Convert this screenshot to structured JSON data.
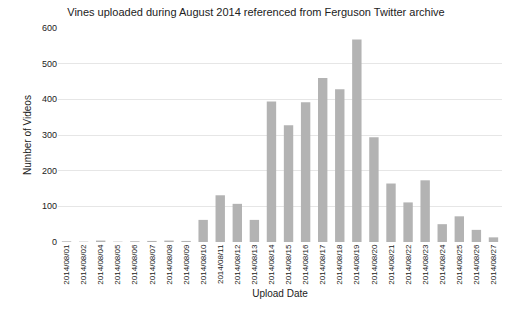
{
  "chart_data": {
    "type": "bar",
    "title": "Vines uploaded during August 2014 referenced from Ferguson Twitter archive",
    "x_label": "Upload Date",
    "y_label": "Number of Videos",
    "categories": [
      "2014/08/01",
      "2014/08/02",
      "2014/08/04",
      "2014/08/05",
      "2014/08/06",
      "2014/08/07",
      "2014/08/08",
      "2014/08/09",
      "2014/08/10",
      "2014/08/11",
      "2014/08/12",
      "2014/08/13",
      "2014/08/14",
      "2014/08/15",
      "2014/08/16",
      "2014/08/17",
      "2014/08/18",
      "2014/08/19",
      "2014/08/20",
      "2014/08/21",
      "2014/08/22",
      "2014/08/23",
      "2014/08/24",
      "2014/08/25",
      "2014/08/26",
      "2014/08/27"
    ],
    "values": [
      2,
      1,
      4,
      1,
      2,
      3,
      4,
      3,
      62,
      131,
      107,
      62,
      394,
      327,
      392,
      460,
      428,
      568,
      294,
      164,
      111,
      173,
      50,
      72,
      34,
      13
    ],
    "color": "#b3b3b3",
    "ylim": [
      0,
      600
    ],
    "yticks": [
      0,
      100,
      200,
      300,
      400,
      500,
      600
    ],
    "grid": true
  }
}
